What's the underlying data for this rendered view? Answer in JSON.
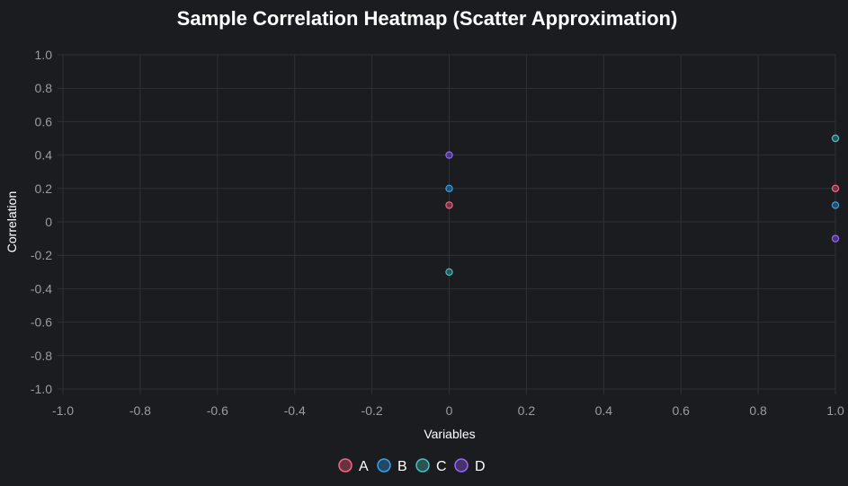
{
  "chart_data": {
    "type": "scatter",
    "title": "Sample Correlation Heatmap (Scatter Approximation)",
    "xlabel": "Variables",
    "ylabel": "Correlation",
    "xlim": [
      -1,
      1
    ],
    "ylim": [
      -1,
      1
    ],
    "x_ticks": [
      "-1.0",
      "-0.8",
      "-0.6",
      "-0.4",
      "-0.2",
      "0",
      "0.2",
      "0.4",
      "0.6",
      "0.8",
      "1.0"
    ],
    "y_ticks": [
      "1.0",
      "0.8",
      "0.6",
      "0.4",
      "0.2",
      "0",
      "-0.2",
      "-0.4",
      "-0.6",
      "-0.8",
      "-1.0"
    ],
    "grid": true,
    "legend_position": "bottom",
    "series": [
      {
        "name": "A",
        "color": "#ff6384",
        "points": [
          {
            "x": 0,
            "y": 0.1
          },
          {
            "x": 1,
            "y": 0.2
          }
        ]
      },
      {
        "name": "B",
        "color": "#36a2eb",
        "points": [
          {
            "x": 0,
            "y": 0.2
          },
          {
            "x": 1,
            "y": 0.1
          }
        ]
      },
      {
        "name": "C",
        "color": "#4bc0c0",
        "points": [
          {
            "x": 0,
            "y": -0.3
          },
          {
            "x": 1,
            "y": 0.5
          }
        ]
      },
      {
        "name": "D",
        "color": "#9966ff",
        "points": [
          {
            "x": 0,
            "y": 0.4
          },
          {
            "x": 1,
            "y": -0.1
          }
        ]
      }
    ]
  }
}
